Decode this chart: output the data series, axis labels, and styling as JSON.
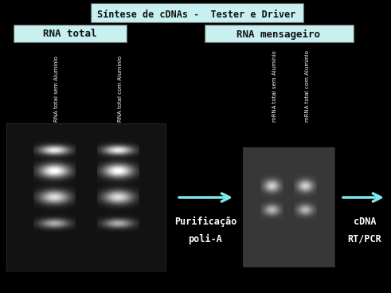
{
  "title": "Síntese de cDNAs -  Tester e Driver",
  "title_bg": "#c8f0f0",
  "label_rna_total": "RNA total",
  "label_rna_mensageiro": "RNA mensageiro",
  "label_bg": "#c8f0f0",
  "col1_label": "RNA total sem Alumínio",
  "col2_label": "RNA total com Alumínio",
  "col3_label": "mRNA total sem Alumínio",
  "col4_label": "mRNA total com Alumínio",
  "arrow1_text1": "Purificação",
  "arrow1_text2": "poli-A",
  "arrow2_text1": "cDNA",
  "arrow2_text2": "RT/PCR",
  "arrow_color": "#80e8e8",
  "background_color": "#000000"
}
